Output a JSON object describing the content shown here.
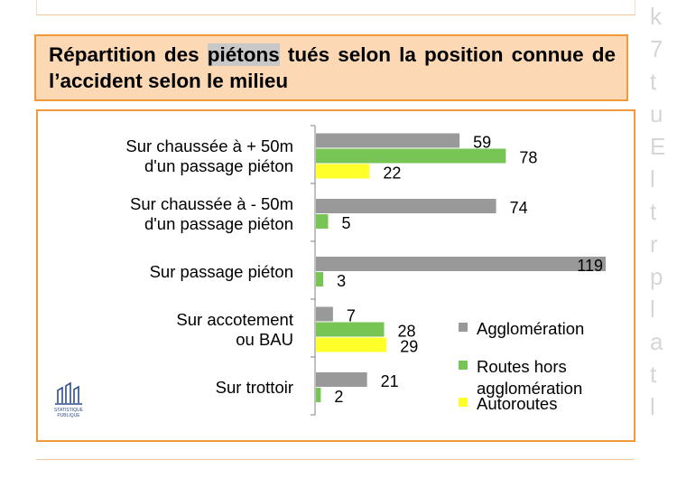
{
  "title_parts": {
    "before": "Répartition des ",
    "highlight": "piétons",
    "after": " tués selon la position connue de l’accident selon le milieu"
  },
  "logo": {
    "icon": "statistique-publique-logo",
    "line1": "STATISTIQUE",
    "line2": "PUBLIQUE"
  },
  "colors": {
    "title_bg": "#fcd9b4",
    "border": "#f29a3a"
  },
  "chart_data": {
    "type": "bar",
    "orientation": "horizontal",
    "categories": [
      "Sur chaussée à + 50m\nd'un passage piéton",
      "Sur chaussée à - 50m\nd'un passage piéton",
      "Sur passage piéton",
      "Sur accotement\nou BAU",
      "Sur trottoir"
    ],
    "series": [
      {
        "name": "Agglomération",
        "color": "#999999",
        "values": [
          59,
          74,
          119,
          7,
          21
        ]
      },
      {
        "name": "Routes hors agglomération",
        "color": "#77c555",
        "values": [
          78,
          5,
          3,
          28,
          2
        ]
      },
      {
        "name": "Autoroutes",
        "color": "#ffff2a",
        "values": [
          22,
          null,
          null,
          29,
          null
        ]
      }
    ],
    "xlim": [
      0,
      119
    ],
    "grid": false,
    "legend_position": "bottom-right"
  }
}
